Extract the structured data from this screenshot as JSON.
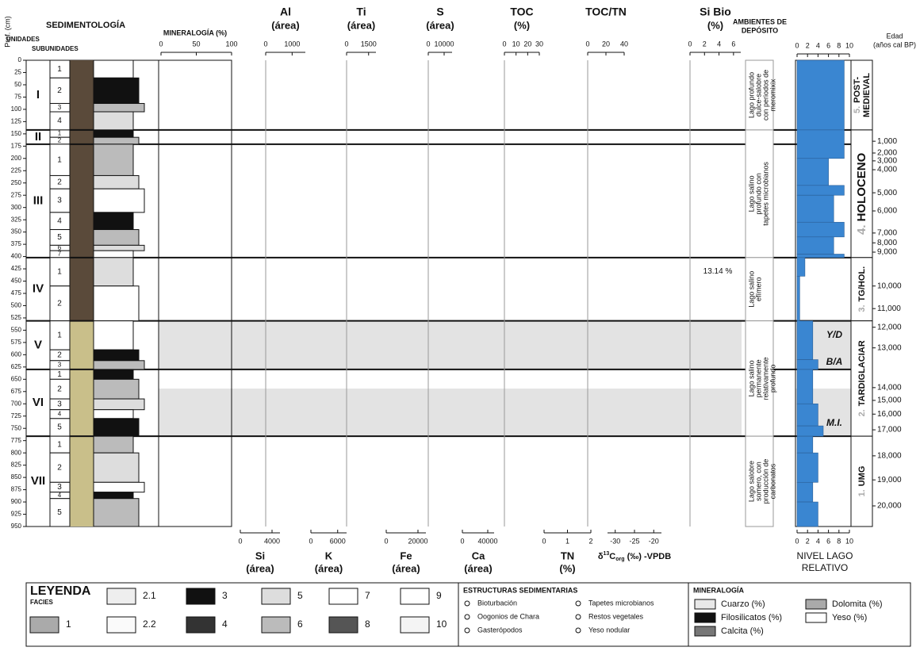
{
  "depth_axis": {
    "label": "Prof. (cm)",
    "lim": [
      0,
      950
    ],
    "ticks": [
      0,
      25,
      50,
      75,
      100,
      125,
      150,
      175,
      200,
      225,
      250,
      275,
      300,
      325,
      350,
      375,
      400,
      425,
      450,
      475,
      500,
      525,
      550,
      575,
      600,
      625,
      650,
      675,
      700,
      725,
      750,
      775,
      800,
      825,
      850,
      875,
      900,
      925,
      950
    ]
  },
  "headers": {
    "sedimentology": "SEDIMENTOLOGÍA",
    "units": "UNIDADES",
    "subunits": "SUBUNIDADES",
    "mineralogy": "MINERALOGÍA (%)",
    "environments": [
      "AMBIENTES DE",
      "DEPÓSITO"
    ],
    "age": [
      "Edad",
      "(años cal BP)"
    ],
    "lake_level": [
      "NIVEL LAGO",
      "RELATIVO"
    ]
  },
  "mineralogy_axis": {
    "lim": [
      0,
      100
    ],
    "ticks": [
      0,
      50,
      100
    ]
  },
  "top_columns": [
    {
      "name": "Al",
      "unit": "(área)",
      "lim": [
        0,
        1500
      ],
      "ticks": [
        0,
        1000
      ]
    },
    {
      "name": "Ti",
      "unit": "(área)",
      "lim": [
        0,
        2000
      ],
      "ticks": [
        0,
        1500
      ]
    },
    {
      "name": "S",
      "unit": "(área)",
      "lim": [
        0,
        15000
      ],
      "ticks": [
        0,
        10000
      ]
    },
    {
      "name": "TOC",
      "unit": "(%)",
      "lim": [
        0,
        30
      ],
      "ticks": [
        0,
        10,
        20,
        30
      ]
    },
    {
      "name": "TOC/TN",
      "lim": [
        0,
        40
      ],
      "ticks": [
        0,
        20,
        40
      ]
    },
    {
      "name": "Si Bio",
      "unit": "(%)",
      "lim": [
        0,
        7
      ],
      "ticks": [
        0,
        2,
        4,
        6
      ]
    }
  ],
  "bottom_columns": [
    {
      "name": "Si",
      "unit": "(área)",
      "lim": [
        0,
        5000
      ],
      "ticks": [
        0,
        4000
      ]
    },
    {
      "name": "K",
      "unit": "(área)",
      "lim": [
        0,
        8000
      ],
      "ticks": [
        0,
        6000
      ]
    },
    {
      "name": "Fe",
      "unit": "(área)",
      "lim": [
        0,
        25000
      ],
      "ticks": [
        0,
        20000
      ]
    },
    {
      "name": "Ca",
      "unit": "(área)",
      "lim": [
        0,
        50000
      ],
      "ticks": [
        0,
        40000
      ]
    },
    {
      "name": "TN",
      "unit": "(%)",
      "lim": [
        0,
        2
      ],
      "ticks": [
        0,
        1,
        2
      ]
    },
    {
      "name": [
        "δ",
        "13",
        "C",
        "org",
        " (‰)  -VPDB"
      ],
      "lim": [
        -32,
        -18
      ],
      "ticks": [
        -30,
        -25,
        -20
      ]
    }
  ],
  "units": [
    {
      "label": "I",
      "top": 0,
      "bottom": 142,
      "subunits": [
        {
          "label": "1",
          "top": 0,
          "bottom": 36
        },
        {
          "label": "2",
          "top": 36,
          "bottom": 88
        },
        {
          "label": "3",
          "top": 88,
          "bottom": 105
        },
        {
          "label": "4",
          "top": 105,
          "bottom": 142
        }
      ]
    },
    {
      "label": "II",
      "top": 142,
      "bottom": 171,
      "subunits": [
        {
          "label": "1",
          "top": 142,
          "bottom": 157
        },
        {
          "label": "2",
          "top": 157,
          "bottom": 171
        }
      ]
    },
    {
      "label": "III",
      "top": 171,
      "bottom": 402,
      "subunits": [
        {
          "label": "1",
          "top": 171,
          "bottom": 235
        },
        {
          "label": "2",
          "top": 235,
          "bottom": 262
        },
        {
          "label": "3",
          "top": 262,
          "bottom": 310
        },
        {
          "label": "4",
          "top": 310,
          "bottom": 345
        },
        {
          "label": "5",
          "top": 345,
          "bottom": 377
        },
        {
          "label": "6",
          "top": 377,
          "bottom": 388
        },
        {
          "label": "7",
          "top": 388,
          "bottom": 402
        }
      ]
    },
    {
      "label": "IV",
      "top": 402,
      "bottom": 531,
      "subunits": [
        {
          "label": "1",
          "top": 402,
          "bottom": 460
        },
        {
          "label": "2",
          "top": 460,
          "bottom": 531
        }
      ]
    },
    {
      "label": "V",
      "top": 531,
      "bottom": 630,
      "subunits": [
        {
          "label": "1",
          "top": 531,
          "bottom": 590
        },
        {
          "label": "2",
          "top": 590,
          "bottom": 612
        },
        {
          "label": "3",
          "top": 612,
          "bottom": 630
        }
      ]
    },
    {
      "label": "VI",
      "top": 630,
      "bottom": 766,
      "subunits": [
        {
          "label": "1",
          "top": 630,
          "bottom": 650
        },
        {
          "label": "2",
          "top": 650,
          "bottom": 690
        },
        {
          "label": "3",
          "top": 690,
          "bottom": 712
        },
        {
          "label": "4",
          "top": 712,
          "bottom": 730
        },
        {
          "label": "5",
          "top": 730,
          "bottom": 766
        }
      ]
    },
    {
      "label": "VII",
      "top": 766,
      "bottom": 950,
      "subunits": [
        {
          "label": "1",
          "top": 766,
          "bottom": 800
        },
        {
          "label": "2",
          "top": 800,
          "bottom": 860
        },
        {
          "label": "3",
          "top": 860,
          "bottom": 880
        },
        {
          "label": "4",
          "top": 880,
          "bottom": 893
        },
        {
          "label": "5",
          "top": 893,
          "bottom": 950
        }
      ]
    }
  ],
  "shaded_intervals": [
    [
      531,
      630
    ],
    [
      669,
      766
    ]
  ],
  "environments": [
    {
      "lines": [
        "Lago profundo",
        "dulce-salobre",
        "con periodos de",
        "meromixix"
      ],
      "top": 0,
      "bottom": 142
    },
    {
      "lines": [
        "Lago salino",
        "profundo con",
        "tapetes microbianos"
      ],
      "top": 142,
      "bottom": 402
    },
    {
      "lines": [
        "Lago salino",
        "efímero"
      ],
      "top": 402,
      "bottom": 531
    },
    {
      "lines": [
        "Lago salino",
        "permanente",
        "relativamente",
        "profundo"
      ],
      "top": 531,
      "bottom": 766
    },
    {
      "lines": [
        "Lago salobre",
        "somero, con",
        "producción de",
        "carbonatos"
      ],
      "top": 766,
      "bottom": 950
    }
  ],
  "lake_level": {
    "lim": [
      0,
      10
    ],
    "ticks": [
      0,
      2,
      4,
      6,
      8,
      10
    ],
    "color": "#3a86d1",
    "segments": [
      {
        "top": 0,
        "bottom": 142,
        "value": 9
      },
      {
        "top": 142,
        "bottom": 200,
        "value": 9
      },
      {
        "top": 200,
        "bottom": 255,
        "value": 6
      },
      {
        "top": 255,
        "bottom": 275,
        "value": 9
      },
      {
        "top": 275,
        "bottom": 330,
        "value": 7
      },
      {
        "top": 330,
        "bottom": 360,
        "value": 9
      },
      {
        "top": 360,
        "bottom": 395,
        "value": 7
      },
      {
        "top": 395,
        "bottom": 402,
        "value": 9
      },
      {
        "top": 402,
        "bottom": 440,
        "value": 1.5
      },
      {
        "top": 440,
        "bottom": 531,
        "value": 0.5
      },
      {
        "top": 531,
        "bottom": 610,
        "value": 3
      },
      {
        "top": 610,
        "bottom": 630,
        "value": 4
      },
      {
        "top": 630,
        "bottom": 700,
        "value": 3
      },
      {
        "top": 700,
        "bottom": 745,
        "value": 4
      },
      {
        "top": 745,
        "bottom": 766,
        "value": 5
      },
      {
        "top": 766,
        "bottom": 800,
        "value": 3
      },
      {
        "top": 800,
        "bottom": 860,
        "value": 4
      },
      {
        "top": 860,
        "bottom": 900,
        "value": 3
      },
      {
        "top": 900,
        "bottom": 950,
        "value": 4
      }
    ]
  },
  "chronozones": [
    {
      "number": "5.",
      "lines": [
        "POST-",
        "MEDIEVAL"
      ],
      "top": 0,
      "bottom": 142
    },
    {
      "number": "4.",
      "lines": [
        "HOLOCENO"
      ],
      "top": 142,
      "bottom": 402
    },
    {
      "number": "3.",
      "lines": [
        "TG/HOL."
      ],
      "top": 402,
      "bottom": 531
    },
    {
      "number": "2.",
      "lines": [
        "TARDIGLACIAR"
      ],
      "top": 531,
      "bottom": 766
    },
    {
      "number": "1.",
      "lines": [
        "UMG"
      ],
      "top": 766,
      "bottom": 950
    }
  ],
  "ages": [
    {
      "value": 1000,
      "label": "1,000",
      "depth": 165
    },
    {
      "value": 2000,
      "label": "2,000",
      "depth": 189
    },
    {
      "value": 3000,
      "label": "3,000",
      "depth": 205
    },
    {
      "value": 4000,
      "label": "4,000",
      "depth": 223
    },
    {
      "value": 5000,
      "label": "5,000",
      "depth": 270
    },
    {
      "value": 6000,
      "label": "6,000",
      "depth": 307
    },
    {
      "value": 7000,
      "label": "7,000",
      "depth": 352
    },
    {
      "value": 8000,
      "label": "8,000",
      "depth": 372
    },
    {
      "value": 9000,
      "label": "9,000",
      "depth": 391
    },
    {
      "value": 10000,
      "label": "10,000",
      "depth": 460
    },
    {
      "value": 11000,
      "label": "11,000",
      "depth": 506
    },
    {
      "value": 12000,
      "label": "12,000",
      "depth": 544
    },
    {
      "value": 13000,
      "label": "13,000",
      "depth": 586
    },
    {
      "value": 14000,
      "label": "14,000",
      "depth": 667
    },
    {
      "value": 15000,
      "label": "15,000",
      "depth": 693
    },
    {
      "value": 16000,
      "label": "16,000",
      "depth": 721
    },
    {
      "value": 17000,
      "label": "17,000",
      "depth": 753
    },
    {
      "value": 18000,
      "label": "18,000",
      "depth": 806
    },
    {
      "value": 19000,
      "label": "19,000",
      "depth": 855
    },
    {
      "value": 20000,
      "label": "20,000",
      "depth": 908
    }
  ],
  "lake_annotations": [
    {
      "text": "Y/D",
      "depth": 560
    },
    {
      "text": "B/A",
      "depth": 615
    },
    {
      "text": "M.I.",
      "depth": 740
    }
  ],
  "si_bio_annotation": {
    "text": "13.14 %",
    "depth": 430
  },
  "legend": {
    "title": "LEYENDA",
    "facies_title": "FACIES",
    "facies": [
      "2.1",
      "3",
      "5",
      "7",
      "9",
      "1",
      "2.2",
      "4",
      "6",
      "8",
      "10"
    ],
    "structures_title": "ESTRUCTURAS SEDIMENTARIAS",
    "structures": [
      "Bioturbación",
      "Oogonios de Chara",
      "Gasterópodos",
      "Tapetes microbianos",
      "Restos vegetales",
      "Yeso nodular"
    ],
    "mineralogy_title": "MINERALOGÍA",
    "mineralogy": [
      "Cuarzo (%)",
      "Filosilicatos (%)",
      "Calcita (%)",
      "Dolomita (%)",
      "Yeso (%)"
    ]
  }
}
